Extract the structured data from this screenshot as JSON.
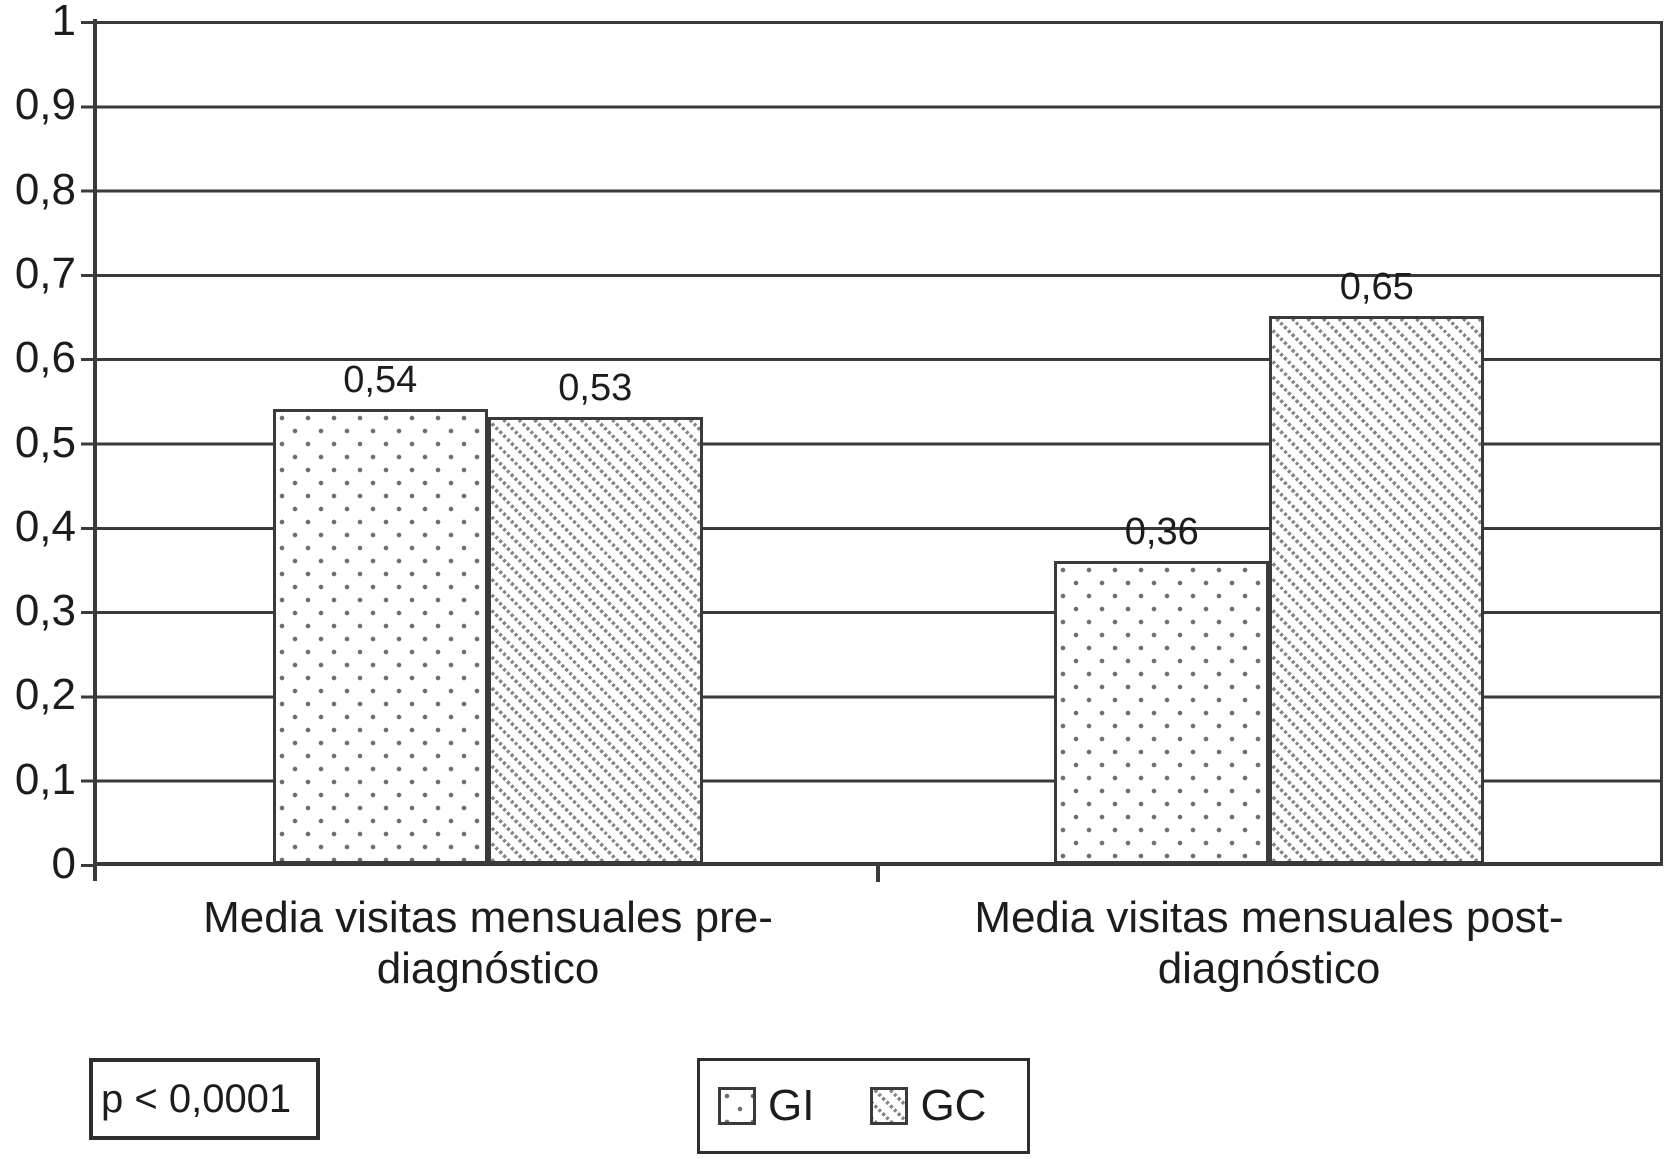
{
  "chart_data": {
    "type": "bar",
    "title": "",
    "categories": [
      "Media visitas mensuales pre-\ndiagnóstico",
      "Media visitas mensuales post-\ndiagnóstico"
    ],
    "series": [
      {
        "name": "GI",
        "pattern": "dots",
        "values": [
          0.54,
          0.36
        ]
      },
      {
        "name": "GC",
        "pattern": "diagonal-hatch",
        "values": [
          0.53,
          0.65
        ]
      }
    ],
    "value_labels": [
      [
        "0,54",
        "0,53"
      ],
      [
        "0,36",
        "0,65"
      ]
    ],
    "yticks": [
      "0",
      "0,1",
      "0,2",
      "0,3",
      "0,4",
      "0,5",
      "0,6",
      "0,7",
      "0,8",
      "0,9",
      "1"
    ],
    "ylim": [
      0,
      1
    ],
    "xlabel": "",
    "ylabel": "",
    "grid": "horizontal",
    "legend_position": "bottom-center"
  },
  "annotation": {
    "p_value": "p < 0,0001"
  },
  "colors": {
    "line": "#3a3a3a",
    "text": "#1c1c1c",
    "pattern_gray": "#787878",
    "background": "#ffffff"
  }
}
